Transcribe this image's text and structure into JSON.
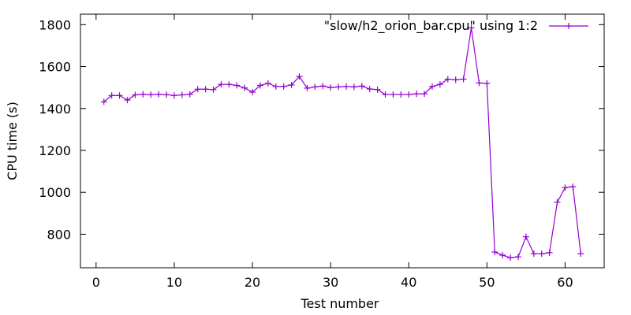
{
  "chart_data": {
    "type": "line",
    "title": "",
    "xlabel": "Test number",
    "ylabel": "CPU time (s)",
    "xlim": [
      -2,
      65
    ],
    "ylim": [
      640,
      1850
    ],
    "x_ticks": [
      0,
      10,
      20,
      30,
      40,
      50,
      60
    ],
    "y_ticks": [
      800,
      1000,
      1200,
      1400,
      1600,
      1800
    ],
    "grid": false,
    "legend_position": "top-right",
    "series": [
      {
        "name": "\"slow/h2_orion_bar.cpu\" using 1:2",
        "color": "#9400d3",
        "marker": "plus",
        "x": [
          1,
          2,
          3,
          4,
          5,
          6,
          7,
          8,
          9,
          10,
          11,
          12,
          13,
          14,
          15,
          16,
          17,
          18,
          19,
          20,
          21,
          22,
          23,
          24,
          25,
          26,
          27,
          28,
          29,
          30,
          31,
          32,
          33,
          34,
          35,
          36,
          37,
          38,
          39,
          40,
          41,
          42,
          43,
          44,
          45,
          46,
          47,
          48,
          49,
          50,
          51,
          52,
          53,
          54,
          55,
          56,
          57,
          58,
          59,
          60,
          61,
          62
        ],
        "y": [
          1432,
          1462,
          1462,
          1440,
          1465,
          1468,
          1466,
          1468,
          1466,
          1462,
          1465,
          1468,
          1492,
          1492,
          1490,
          1515,
          1515,
          1510,
          1498,
          1478,
          1510,
          1520,
          1505,
          1505,
          1512,
          1553,
          1497,
          1503,
          1507,
          1500,
          1503,
          1505,
          1503,
          1507,
          1493,
          1490,
          1467,
          1467,
          1467,
          1467,
          1470,
          1470,
          1505,
          1515,
          1540,
          1537,
          1540,
          1785,
          1522,
          1520,
          715,
          700,
          688,
          692,
          788,
          707,
          707,
          712,
          953,
          1022,
          1027,
          707
        ]
      }
    ]
  }
}
